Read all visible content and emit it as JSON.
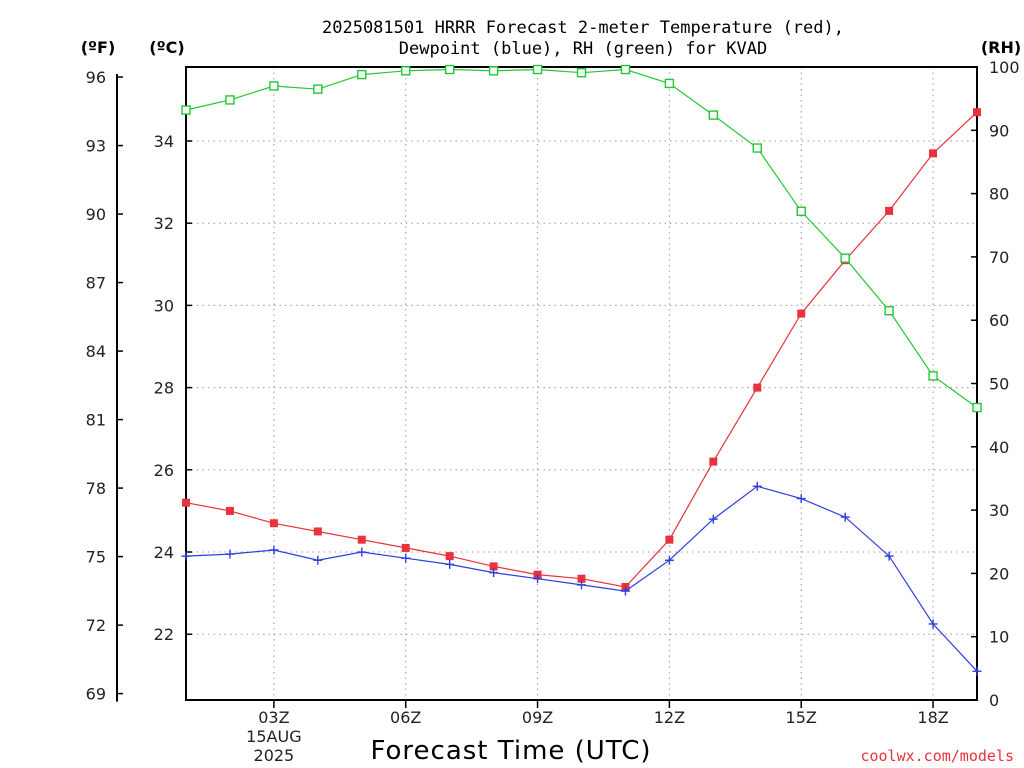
{
  "chart_data": {
    "type": "line",
    "title_line1": "2025081501 HRRR Forecast 2-meter Temperature (red),",
    "title_line2": "Dewpoint (blue), RH (green) for KVAD",
    "xlabel": "Forecast Time (UTC)",
    "unit_f": "(ºF)",
    "unit_c": "(ºC)",
    "unit_rh": "(RH)",
    "credit": "coolwx.com/models",
    "x_hours": [
      1,
      2,
      3,
      4,
      5,
      6,
      7,
      8,
      9,
      10,
      11,
      12,
      13,
      14,
      15,
      16,
      17,
      18,
      19
    ],
    "x_ticks": [
      {
        "hour": 3,
        "label": "03Z",
        "sub1": "15AUG",
        "sub2": "2025"
      },
      {
        "hour": 6,
        "label": "06Z"
      },
      {
        "hour": 9,
        "label": "09Z"
      },
      {
        "hour": 12,
        "label": "12Z"
      },
      {
        "hour": 15,
        "label": "15Z"
      },
      {
        "hour": 18,
        "label": "18Z"
      }
    ],
    "x_range": [
      1,
      19
    ],
    "c_range": [
      20.4,
      35.8
    ],
    "f_ticks": [
      "69",
      "72",
      "75",
      "78",
      "81",
      "84",
      "87",
      "90",
      "93",
      "96"
    ],
    "c_ticks": [
      "22",
      "24",
      "26",
      "28",
      "30",
      "32",
      "34"
    ],
    "rh_range": [
      0,
      100
    ],
    "rh_ticks": [
      "0",
      "10",
      "20",
      "30",
      "40",
      "50",
      "60",
      "70",
      "80",
      "90",
      "100"
    ],
    "grid": true,
    "series": [
      {
        "name": "Temperature",
        "color": "#e8323c",
        "marker": "filled-square",
        "values": [
          25.2,
          25.0,
          24.7,
          24.5,
          24.3,
          24.1,
          23.9,
          23.65,
          23.45,
          23.35,
          23.15,
          24.3,
          26.2,
          28.0,
          29.8,
          31.1,
          32.3,
          33.7,
          34.7
        ]
      },
      {
        "name": "Dewpoint",
        "color": "#2d3ee0",
        "marker": "plus",
        "values": [
          23.9,
          23.95,
          24.05,
          23.8,
          24.0,
          23.85,
          23.7,
          23.5,
          23.35,
          23.2,
          23.05,
          23.8,
          24.8,
          25.6,
          25.3,
          24.85,
          23.9,
          22.25,
          21.1
        ]
      },
      {
        "name": "RH",
        "color": "#22c834",
        "marker": "open-square",
        "values": [
          93.2,
          94.8,
          97.0,
          96.5,
          98.8,
          99.4,
          99.6,
          99.4,
          99.6,
          99.1,
          99.6,
          97.4,
          92.4,
          87.2,
          77.2,
          69.8,
          61.5,
          51.2,
          46.2
        ]
      }
    ]
  }
}
